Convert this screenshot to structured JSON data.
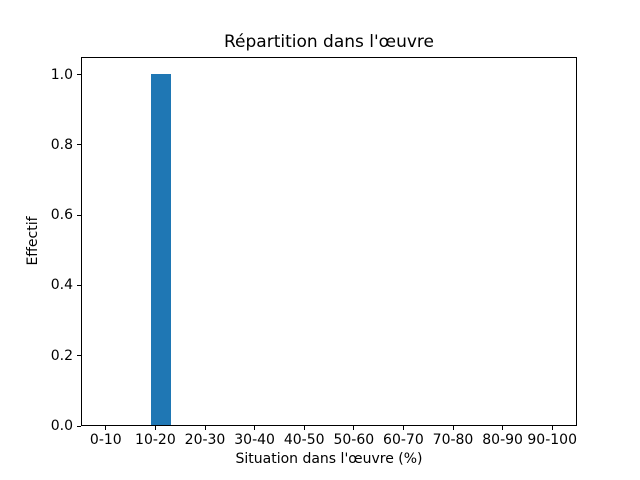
{
  "chart_data": {
    "type": "bar",
    "title": "Répartition dans l'œuvre",
    "xlabel": "Situation dans l'œuvre (%)",
    "ylabel": "Effectif",
    "categories": [
      "0-10",
      "10-20",
      "20-30",
      "30-40",
      "40-50",
      "50-60",
      "60-70",
      "70-80",
      "80-90",
      "90-100"
    ],
    "values": [
      0,
      1,
      0,
      0,
      0,
      0,
      0,
      0,
      0,
      0
    ],
    "yticks": [
      0.0,
      0.2,
      0.4,
      0.6,
      0.8,
      1.0
    ],
    "ytick_labels": [
      "0.0",
      "0.2",
      "0.4",
      "0.6",
      "0.8",
      "1.0"
    ],
    "ylim": [
      0,
      1.05
    ],
    "grid": false,
    "legend_position": "none",
    "bar_color": "#1f77b4",
    "axis_color": "#000000",
    "background_color": "#ffffff"
  }
}
